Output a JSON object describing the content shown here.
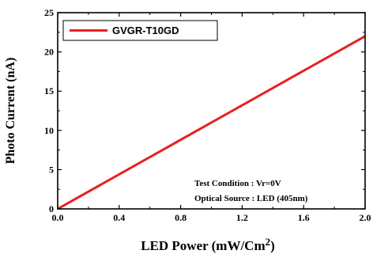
{
  "chart_data": {
    "type": "line",
    "xlabel": "LED Power (mW/Cm",
    "xlabel_sup": "2",
    "xlabel_end": ")",
    "ylabel": "Photo Current (nA)",
    "xlim": [
      0.0,
      2.0
    ],
    "ylim": [
      0,
      25
    ],
    "x_ticks": [
      0.0,
      0.4,
      0.8,
      1.2,
      1.6,
      2.0
    ],
    "x_tick_labels": [
      "0.0",
      "0.4",
      "0.8",
      "1.2",
      "1.6",
      "2.0"
    ],
    "y_ticks": [
      0,
      5,
      10,
      15,
      20,
      25
    ],
    "y_tick_labels": [
      "0",
      "5",
      "10",
      "15",
      "20",
      "25"
    ],
    "grid": false,
    "legend_position": "top-left",
    "series": [
      {
        "name": "GVGR-T10GD",
        "color": "#e8201e",
        "x": [
          0.0,
          2.0
        ],
        "y": [
          0.0,
          22.0
        ]
      }
    ],
    "annotations": [
      "Test Condition : Vr=0V",
      "Optical Source : LED (405nm)"
    ]
  }
}
